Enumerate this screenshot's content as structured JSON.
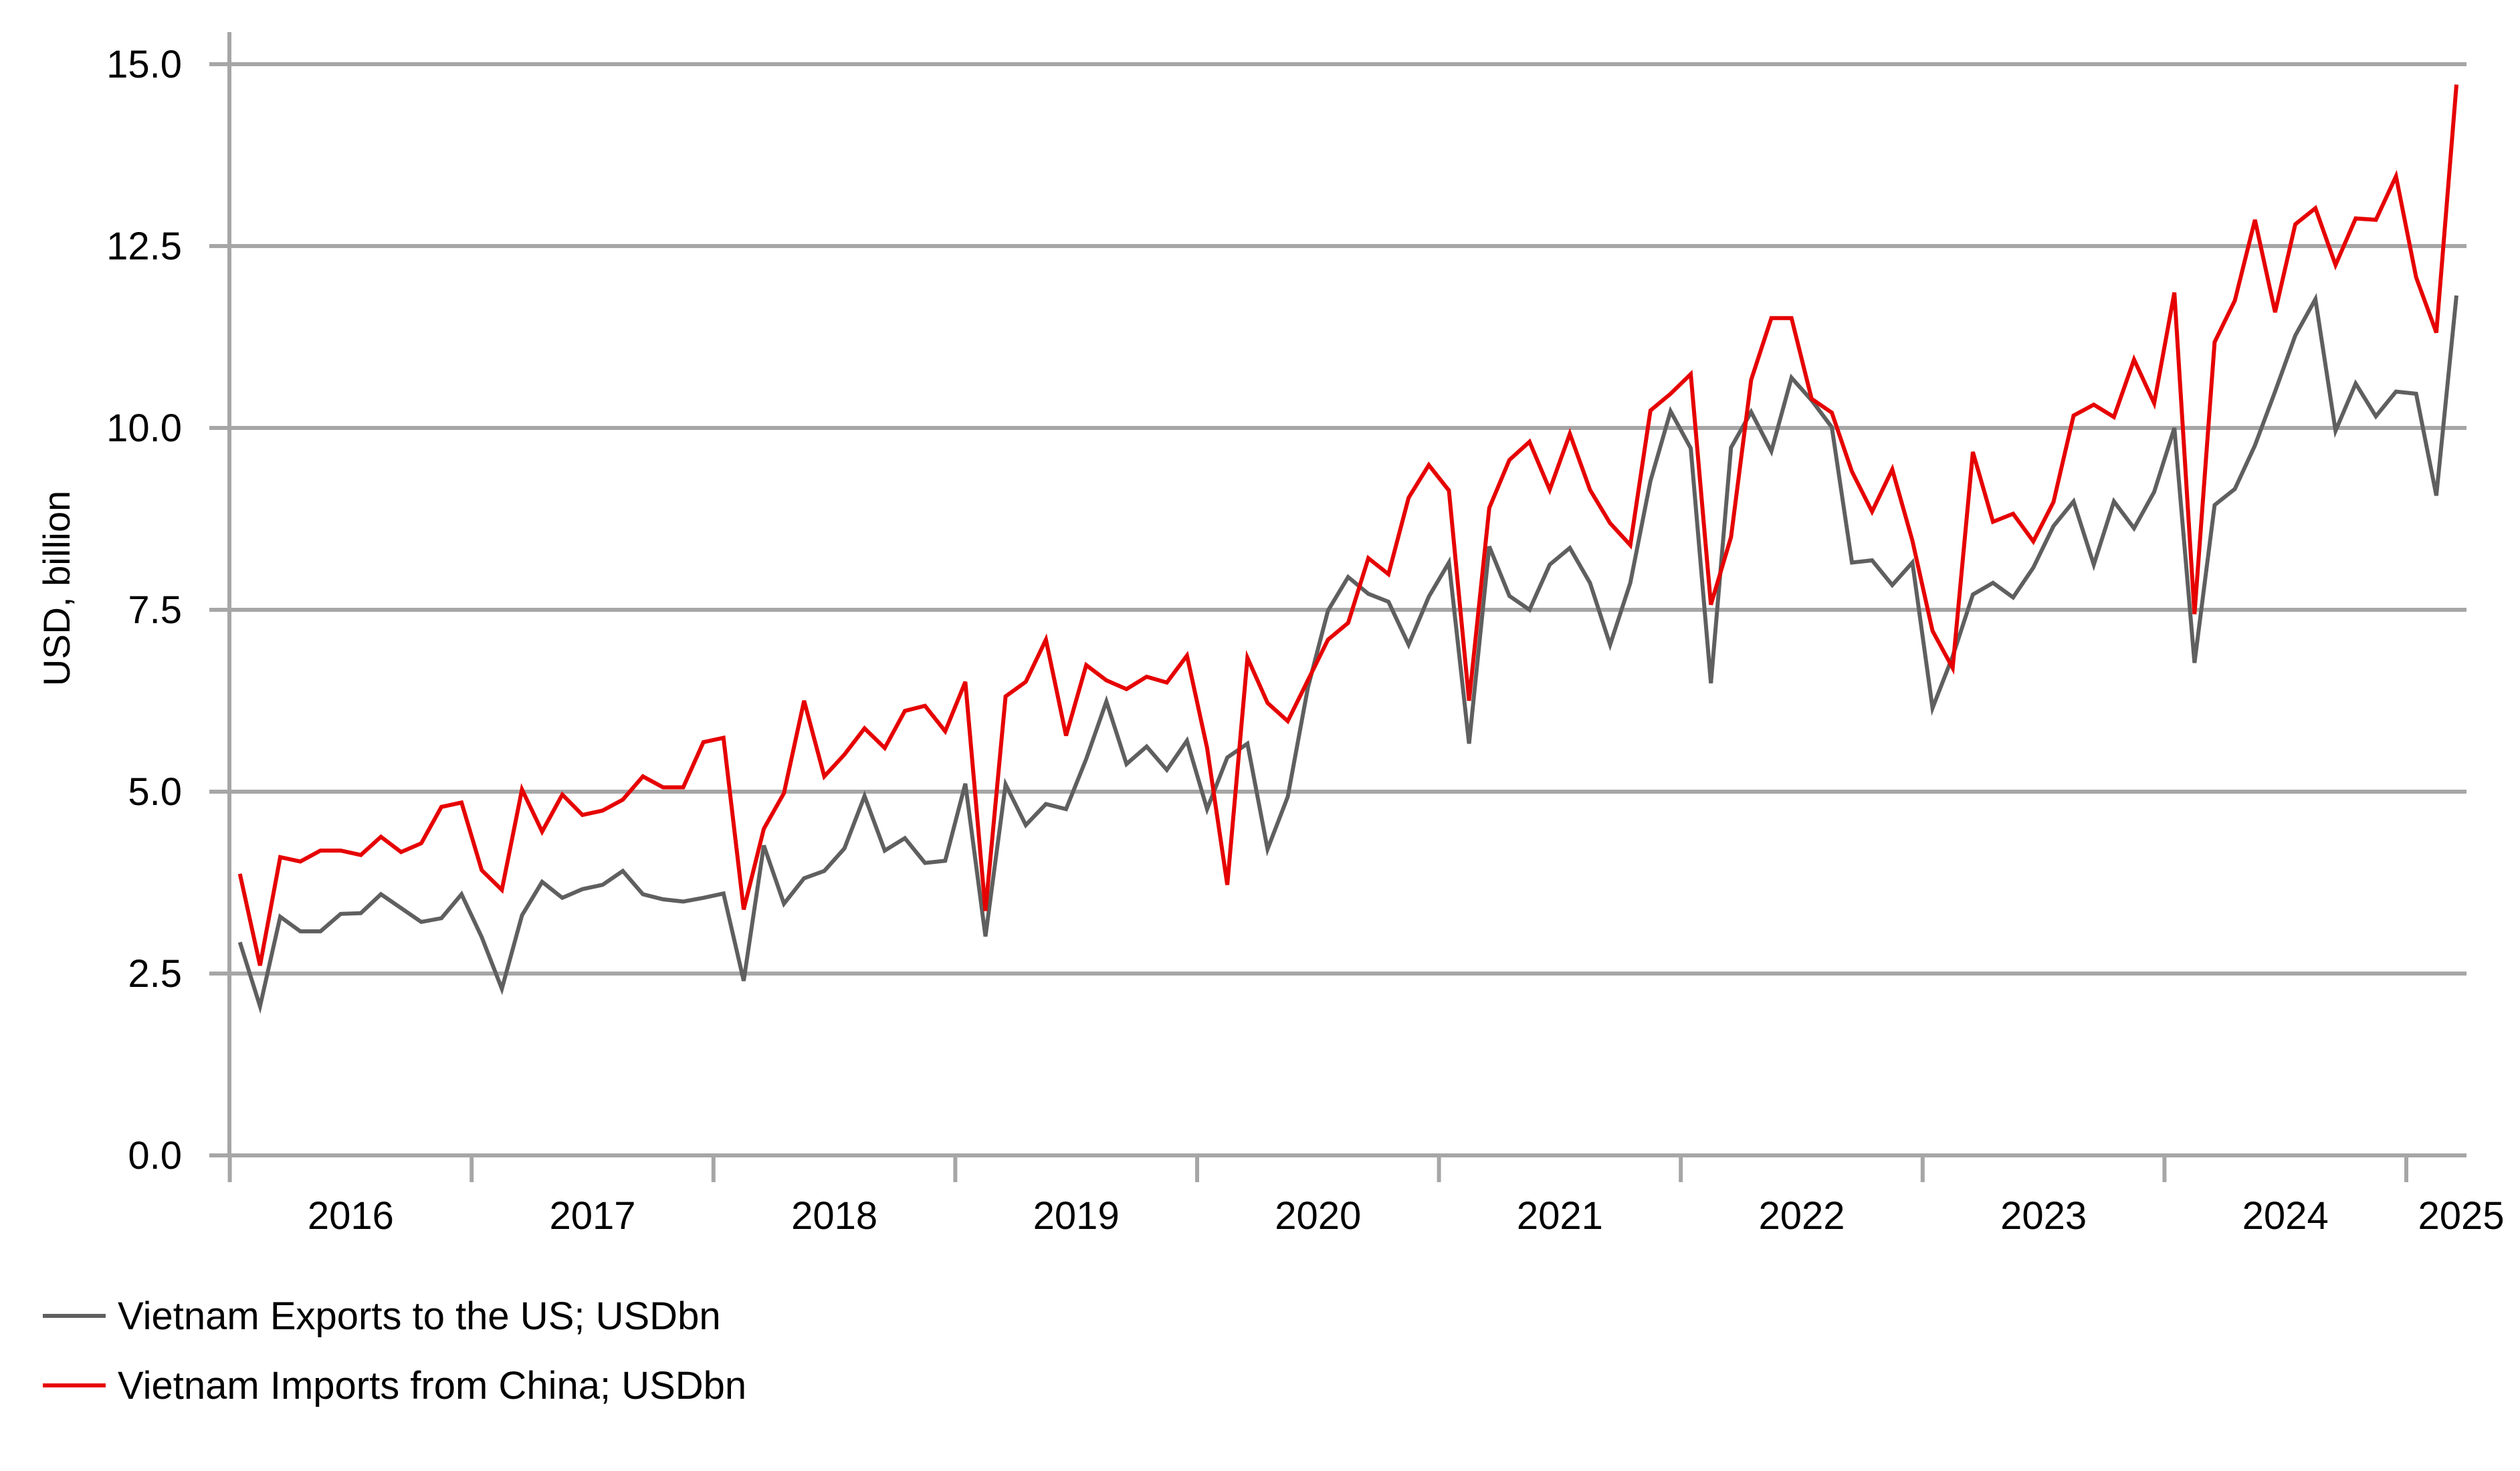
{
  "chart_data": {
    "type": "line",
    "title": "",
    "xlabel": "",
    "ylabel": "USD, billion",
    "ylim": [
      0,
      15
    ],
    "yticks": [
      "0.0",
      "2.5",
      "5.0",
      "7.5",
      "10.0",
      "12.5",
      "15.0"
    ],
    "ytick_values": [
      0,
      2.5,
      5,
      7.5,
      10,
      12.5,
      15
    ],
    "x_start": "2016-01",
    "x_end": "2025-03",
    "x_frequency": "monthly",
    "xtick_labels": [
      "2016",
      "2017",
      "2018",
      "2019",
      "2020",
      "2021",
      "2022",
      "2023",
      "2024",
      "2025"
    ],
    "grid": "horizontal",
    "legend_position": "bottom-left",
    "series": [
      {
        "name": "Vietnam Exports to the US; USDbn",
        "color": "#5f5f5f",
        "values": [
          2.93,
          2.05,
          3.28,
          3.08,
          3.08,
          3.32,
          3.33,
          3.59,
          3.4,
          3.21,
          3.26,
          3.59,
          3.0,
          2.29,
          3.3,
          3.76,
          3.54,
          3.66,
          3.72,
          3.91,
          3.59,
          3.52,
          3.49,
          3.54,
          3.6,
          2.4,
          4.26,
          3.46,
          3.81,
          3.91,
          4.22,
          4.94,
          4.19,
          4.36,
          4.02,
          4.05,
          5.11,
          3.01,
          5.1,
          4.54,
          4.83,
          4.76,
          5.45,
          6.24,
          5.38,
          5.62,
          5.3,
          5.7,
          4.76,
          5.47,
          5.66,
          4.21,
          4.93,
          6.43,
          7.49,
          7.95,
          7.72,
          7.61,
          7.02,
          7.68,
          8.15,
          5.66,
          8.37,
          7.69,
          7.5,
          8.12,
          8.35,
          7.87,
          7.02,
          7.87,
          9.27,
          10.23,
          9.72,
          6.49,
          9.73,
          10.22,
          9.68,
          10.69,
          10.38,
          10.01,
          8.15,
          8.18,
          7.84,
          8.15,
          6.15,
          6.86,
          7.71,
          7.87,
          7.67,
          8.08,
          8.65,
          8.99,
          8.12,
          8.99,
          8.62,
          9.12,
          10.0,
          6.77,
          8.94,
          9.16,
          9.76,
          10.5,
          11.27,
          11.77,
          9.96,
          10.61,
          10.16,
          10.5,
          10.47,
          9.07,
          11.82
        ]
      },
      {
        "name": "Vietnam Imports from China; USDbn",
        "color": "#e60000",
        "values": [
          3.87,
          2.61,
          4.1,
          4.04,
          4.19,
          4.19,
          4.13,
          4.38,
          4.17,
          4.29,
          4.79,
          4.85,
          3.92,
          3.65,
          5.03,
          4.45,
          4.96,
          4.68,
          4.74,
          4.89,
          5.21,
          5.06,
          5.06,
          5.68,
          5.74,
          3.38,
          4.49,
          4.98,
          6.25,
          5.21,
          5.51,
          5.87,
          5.6,
          6.11,
          6.18,
          5.83,
          6.51,
          3.36,
          6.31,
          6.51,
          7.09,
          5.77,
          6.74,
          6.53,
          6.41,
          6.58,
          6.5,
          6.87,
          5.6,
          3.72,
          6.84,
          6.22,
          5.97,
          6.53,
          7.09,
          7.32,
          8.21,
          7.99,
          9.04,
          9.49,
          9.14,
          6.25,
          8.9,
          9.56,
          9.81,
          9.15,
          9.92,
          9.15,
          8.69,
          8.39,
          10.24,
          10.47,
          10.74,
          7.57,
          8.5,
          10.66,
          11.51,
          11.51,
          10.4,
          10.21,
          9.4,
          8.85,
          9.43,
          8.45,
          7.21,
          6.7,
          9.67,
          8.71,
          8.82,
          8.44,
          8.98,
          10.17,
          10.32,
          10.15,
          10.94,
          10.34,
          11.86,
          7.44,
          11.18,
          11.75,
          12.86,
          11.59,
          12.8,
          13.02,
          12.24,
          12.88,
          12.86,
          13.46,
          12.07,
          11.31,
          14.72
        ]
      }
    ]
  }
}
